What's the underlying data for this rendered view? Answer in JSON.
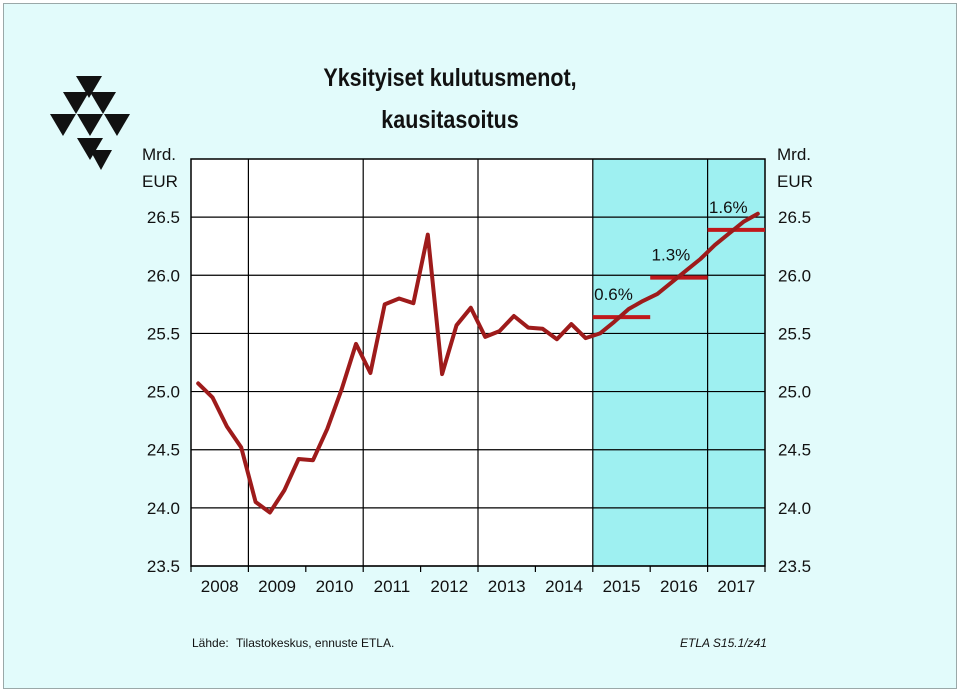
{
  "chart_data": {
    "type": "line",
    "title_line1": "Yksityiset kulutusmenot,",
    "title_line2": "kausitasoitus",
    "unit_line1": "Mrd.",
    "unit_line2": "EUR",
    "ylim": [
      23.5,
      27.0
    ],
    "yticks": [
      23.5,
      24.0,
      24.5,
      25.0,
      25.5,
      26.0,
      26.5
    ],
    "ytick_labels": [
      "23.5",
      "24.0",
      "24.5",
      "25.0",
      "25.5",
      "26.0",
      "26.5"
    ],
    "years": [
      "2008",
      "2009",
      "2010",
      "2011",
      "2012",
      "2013",
      "2014",
      "2015",
      "2016",
      "2017"
    ],
    "forecast_start_year": "2015",
    "grid": true,
    "series": [
      {
        "color": "#9e1b1b",
        "x_quarter_index": [
          0,
          1,
          2,
          3,
          4,
          5,
          6,
          7,
          8,
          9,
          10,
          11,
          12,
          13,
          14,
          15,
          16,
          17,
          18,
          19,
          20,
          21,
          22,
          23,
          24,
          25,
          26,
          27,
          28,
          29,
          30,
          31,
          32,
          33,
          34,
          35,
          36,
          37,
          38,
          39
        ],
        "x_labels_note_free": true,
        "values": [
          25.07,
          24.95,
          24.7,
          24.52,
          24.05,
          23.96,
          24.15,
          24.42,
          24.41,
          24.68,
          25.02,
          25.41,
          25.16,
          25.75,
          25.8,
          25.76,
          26.35,
          25.15,
          25.57,
          25.72,
          25.47,
          25.52,
          25.65,
          25.55,
          25.54,
          25.45,
          25.58,
          25.46,
          25.5,
          25.6,
          25.71,
          25.78,
          25.84,
          25.94,
          26.04,
          26.14,
          26.26,
          26.36,
          26.46,
          26.53
        ]
      }
    ],
    "annual_averages": [
      {
        "year": "2015",
        "value": 25.64,
        "label": "0.6%"
      },
      {
        "year": "2016",
        "value": 25.98,
        "label": "1.3%"
      },
      {
        "year": "2017",
        "value": 26.39,
        "label": "1.6%"
      }
    ],
    "colors": {
      "background": "#e2fbfb",
      "plot": "#ffffff",
      "forecast": "#9ef0f1",
      "line": "#9e1b1b",
      "avg_bar": "#c0181b"
    }
  },
  "footer": {
    "source_label": "Lähde:",
    "source_text": "Tilastokeskus, ennuste ETLA.",
    "ref": "ETLA S15.1/z41"
  },
  "logo_name": "ETLA triangle logo"
}
